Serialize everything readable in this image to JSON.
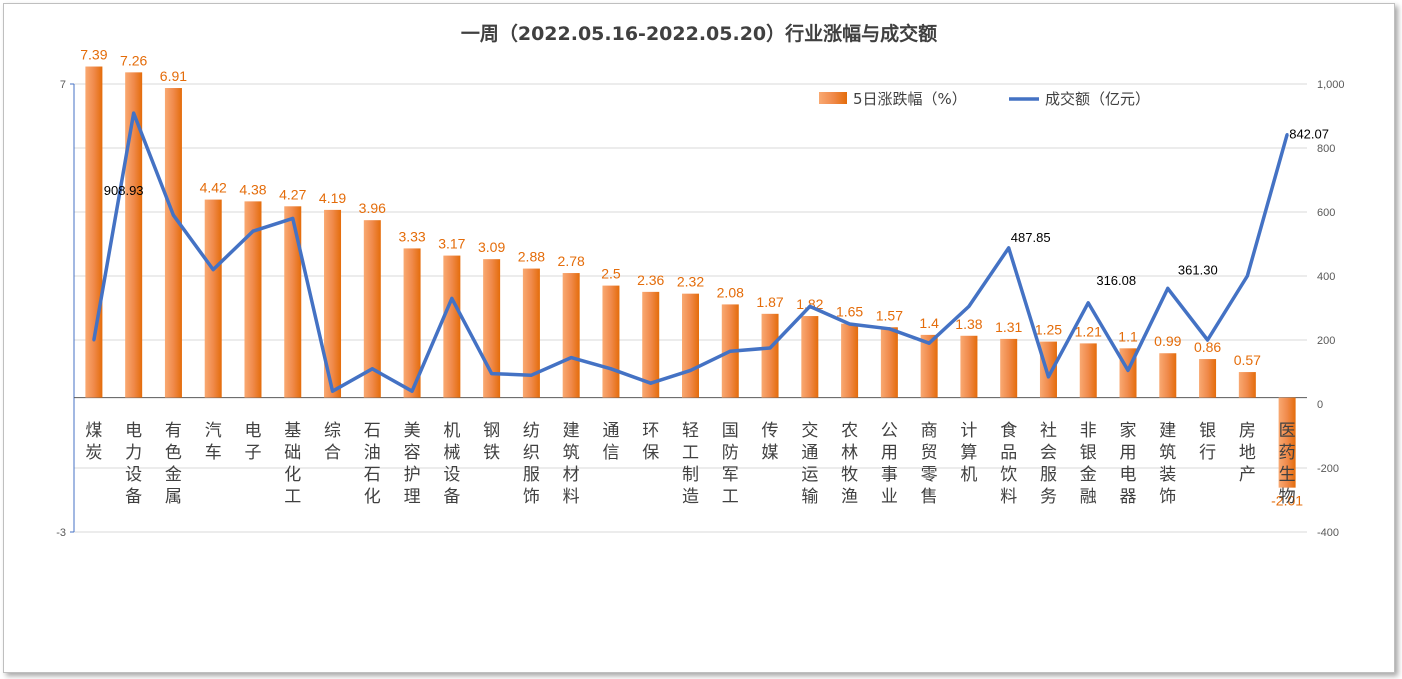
{
  "chart_data": {
    "type": "bar+line",
    "title": "一周（2022.05.16-2022.05.20）行业涨幅与成交额",
    "categories": [
      "煤炭",
      "电力设备",
      "有色金属",
      "汽车",
      "电子",
      "基础化工",
      "综合",
      "石油石化",
      "美容护理",
      "机械设备",
      "钢铁",
      "纺织服饰",
      "建筑材料",
      "通信",
      "环保",
      "轻工制造",
      "国防军工",
      "传媒",
      "交通运输",
      "农林牧渔",
      "公用事业",
      "商贸零售",
      "计算机",
      "食品饮料",
      "社会服务",
      "非银金融",
      "家用电器",
      "建筑装饰",
      "银行",
      "房地产",
      "医药生物"
    ],
    "series": [
      {
        "name": "5日涨跌幅（%）",
        "type": "bar",
        "axis": "left",
        "color": "#ed7d31",
        "values": [
          7.39,
          7.26,
          6.91,
          4.42,
          4.38,
          4.27,
          4.19,
          3.96,
          3.33,
          3.17,
          3.09,
          2.88,
          2.78,
          2.5,
          2.36,
          2.32,
          2.08,
          1.87,
          1.82,
          1.65,
          1.57,
          1.4,
          1.38,
          1.31,
          1.25,
          1.21,
          1.1,
          0.99,
          0.86,
          0.57,
          -2.01
        ],
        "labels": [
          "7.39",
          "7.26",
          "6.91",
          "4.42",
          "4.38",
          "4.27",
          "4.19",
          "3.96",
          "3.33",
          "3.17",
          "3.09",
          "2.88",
          "2.78",
          "2.5",
          "2.36",
          "2.32",
          "2.08",
          "1.87",
          "1.82",
          "1.65",
          "1.57",
          "1.4",
          "1.38",
          "1.31",
          "1.25",
          "1.21",
          "1.1",
          "0.99",
          "0.86",
          "0.57",
          "-2.01"
        ]
      },
      {
        "name": "成交额（亿元）",
        "type": "line",
        "axis": "right",
        "color": "#4472c4",
        "values": [
          200,
          908.93,
          590,
          420,
          540,
          580,
          40,
          110,
          40,
          330,
          95,
          90,
          145,
          110,
          65,
          105,
          165,
          175,
          305,
          250,
          235,
          190,
          305,
          487.85,
          85,
          316.08,
          105,
          361.3,
          200,
          400,
          842.07
        ],
        "labels": [
          {
            "index": 1,
            "text": "908.93"
          },
          {
            "index": 23,
            "text": "487.85"
          },
          {
            "index": 25,
            "text": "316.08"
          },
          {
            "index": 27,
            "text": "361.30"
          },
          {
            "index": 30,
            "text": "842.07"
          }
        ]
      }
    ],
    "left_axis": {
      "ylim": [
        -3,
        7
      ],
      "ticks": [
        "7",
        "-3"
      ]
    },
    "right_axis": {
      "ylim": [
        -400,
        1000
      ],
      "ticks": [
        "1,000",
        "800",
        "600",
        "400",
        "200",
        "0",
        "-200",
        "-400"
      ]
    },
    "legend_position": "top-right",
    "grid": true
  }
}
